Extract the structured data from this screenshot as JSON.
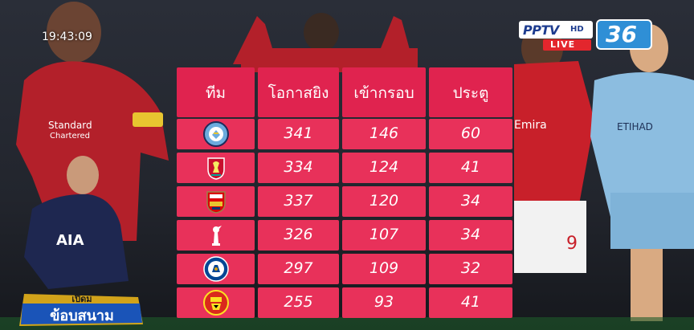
{
  "broadcast": {
    "clock": "19:43:09",
    "channel_name": "PPTV",
    "channel_hd": "HD",
    "live_label": "LIVE",
    "channel_number": "36",
    "program_logo_text": "เปิดม ข้อบสนาม"
  },
  "table": {
    "headers": [
      "ทีม",
      "โอกาสยิง",
      "เข้ากรอบ",
      "ประตู"
    ],
    "rows": [
      {
        "crest": "manchester-city-crest",
        "shots": "341",
        "on_target": "146",
        "goals": "60"
      },
      {
        "crest": "liverpool-crest",
        "shots": "334",
        "on_target": "124",
        "goals": "41"
      },
      {
        "crest": "arsenal-crest",
        "shots": "337",
        "on_target": "120",
        "goals": "34"
      },
      {
        "crest": "tottenham-crest",
        "shots": "326",
        "on_target": "107",
        "goals": "34"
      },
      {
        "crest": "chelsea-crest",
        "shots": "297",
        "on_target": "109",
        "goals": "32"
      },
      {
        "crest": "manchester-united-crest",
        "shots": "255",
        "on_target": "93",
        "goals": "41"
      }
    ]
  },
  "colors": {
    "header": "#e0234f",
    "cell": "#e8315a",
    "channel_blue": "#2f8fd6",
    "live_red": "#e3262d"
  }
}
